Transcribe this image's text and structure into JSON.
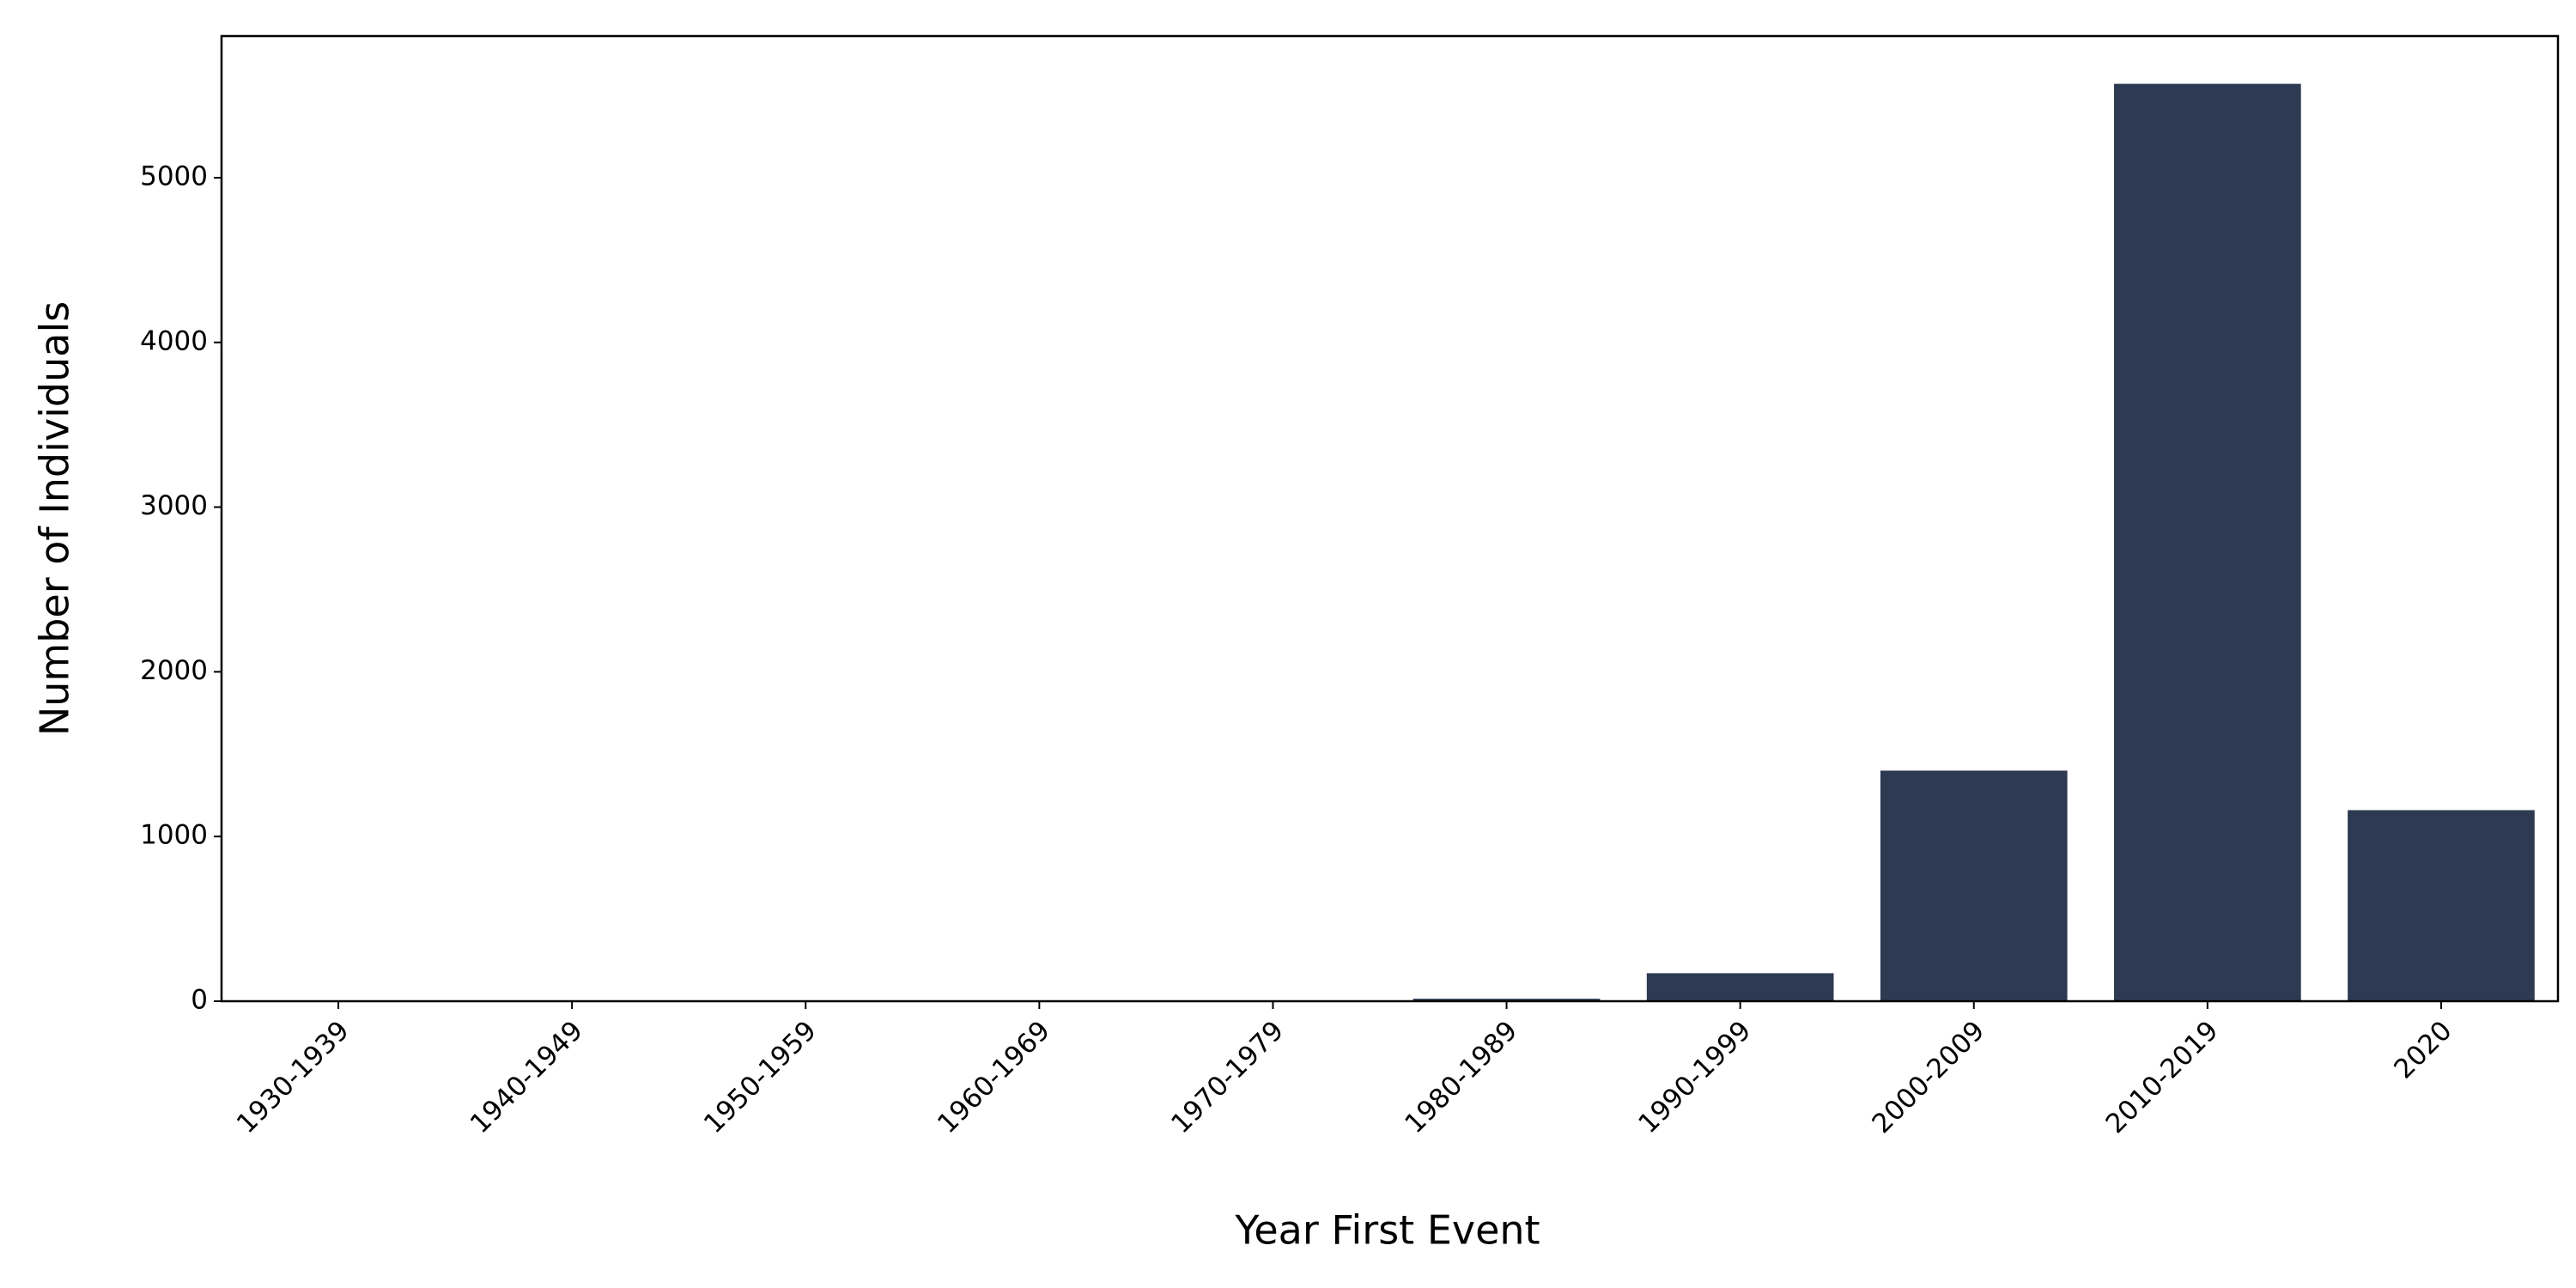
{
  "chart_data": {
    "type": "bar",
    "x_label": "Year First Event",
    "y_label": "Number of Individuals",
    "categories": [
      "1930-1939",
      "1940-1949",
      "1950-1959",
      "1960-1969",
      "1970-1979",
      "1980-1989",
      "1990-1999",
      "2000-2009",
      "2010-2019",
      "2020"
    ],
    "values": [
      1,
      1,
      1,
      2,
      4,
      15,
      170,
      1400,
      5570,
      1160
    ],
    "color": "#2d3a52",
    "ylim": [
      0,
      5860
    ],
    "yticks": [
      0,
      1000,
      2000,
      3000,
      4000,
      5000
    ]
  }
}
